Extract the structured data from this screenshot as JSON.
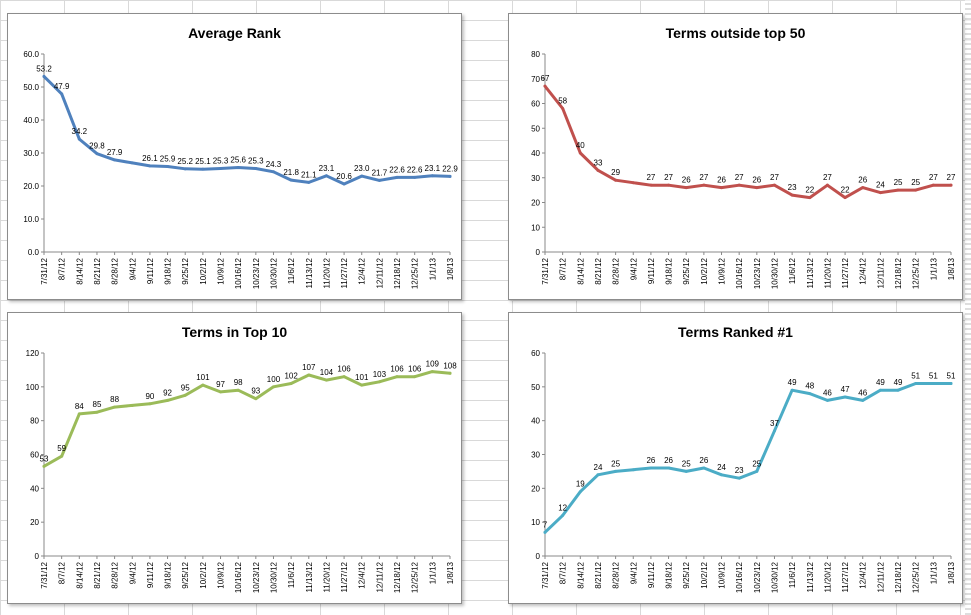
{
  "chart_data": [
    {
      "type": "line",
      "title": "Average Rank",
      "color": "#4f81bd",
      "categories": [
        "7/31/12",
        "8/7/12",
        "8/14/12",
        "8/21/12",
        "8/28/12",
        "9/4/12",
        "9/11/12",
        "9/18/12",
        "9/25/12",
        "10/2/12",
        "10/9/12",
        "10/16/12",
        "10/23/12",
        "10/30/12",
        "11/6/12",
        "11/13/12",
        "11/20/12",
        "11/27/12",
        "12/4/12",
        "12/11/12",
        "12/18/12",
        "12/25/12",
        "1/1/13",
        "1/8/13"
      ],
      "values": [
        53.2,
        47.9,
        34.2,
        29.8,
        27.9,
        27.0,
        26.1,
        25.9,
        25.2,
        25.1,
        25.3,
        25.6,
        25.3,
        24.3,
        21.8,
        21.1,
        23.1,
        20.6,
        23.0,
        21.7,
        22.6,
        22.6,
        23.1,
        22.9
      ],
      "labels": [
        "53.2",
        "47.9",
        "34.2",
        "29.8",
        "27.9",
        "",
        "26.1",
        "25.9",
        "25.2",
        "25.1",
        "25.3",
        "25.6",
        "25.3",
        "24.3",
        "21.8",
        "21.1",
        "23.1",
        "20.6",
        "23.0",
        "21.7",
        "22.6",
        "22.6",
        "23.1",
        "22.9"
      ],
      "yticks": [
        "0.0",
        "10.0",
        "20.0",
        "30.0",
        "40.0",
        "50.0",
        "60.0"
      ],
      "ylim": [
        0,
        60
      ],
      "grid": false
    },
    {
      "type": "line",
      "title": "Terms outside top 50",
      "color": "#c0504d",
      "categories": [
        "7/31/12",
        "8/7/12",
        "8/14/12",
        "8/21/12",
        "8/28/12",
        "9/4/12",
        "9/11/12",
        "9/18/12",
        "9/25/12",
        "10/2/12",
        "10/9/12",
        "10/16/12",
        "10/23/12",
        "10/30/12",
        "11/6/12",
        "11/13/12",
        "11/20/12",
        "11/27/12",
        "12/4/12",
        "12/11/12",
        "12/18/12",
        "12/25/12",
        "1/1/13",
        "1/8/13"
      ],
      "values": [
        67,
        58,
        40,
        33,
        29,
        28,
        27,
        27,
        26,
        27,
        26,
        27,
        26,
        27,
        23,
        22,
        27,
        22,
        26,
        24,
        25,
        25,
        27,
        27
      ],
      "labels": [
        "67",
        "58",
        "40",
        "33",
        "29",
        "",
        "27",
        "27",
        "26",
        "27",
        "26",
        "27",
        "26",
        "27",
        "23",
        "22",
        "27",
        "22",
        "26",
        "24",
        "25",
        "25",
        "27",
        "27"
      ],
      "yticks": [
        "0",
        "10",
        "20",
        "30",
        "40",
        "50",
        "60",
        "70",
        "80"
      ],
      "ylim": [
        0,
        80
      ],
      "grid": false
    },
    {
      "type": "line",
      "title": "Terms in Top 10",
      "color": "#9bbb59",
      "categories": [
        "7/31/12",
        "8/7/12",
        "8/14/12",
        "8/21/12",
        "8/28/12",
        "9/4/12",
        "9/11/12",
        "9/18/12",
        "9/25/12",
        "10/2/12",
        "10/9/12",
        "10/16/12",
        "10/23/12",
        "10/30/12",
        "11/6/12",
        "11/13/12",
        "11/20/12",
        "11/27/12",
        "12/4/12",
        "12/11/12",
        "12/18/12",
        "12/25/12",
        "1/1/13",
        "1/8/13"
      ],
      "values": [
        53,
        59,
        84,
        85,
        88,
        89,
        90,
        92,
        95,
        101,
        97,
        98,
        93,
        100,
        102,
        107,
        104,
        106,
        101,
        103,
        106,
        106,
        109,
        108
      ],
      "labels": [
        "53",
        "59",
        "84",
        "85",
        "88",
        "",
        "90",
        "92",
        "95",
        "101",
        "97",
        "98",
        "93",
        "100",
        "102",
        "107",
        "104",
        "106",
        "101",
        "103",
        "106",
        "106",
        "109",
        "108"
      ],
      "yticks": [
        "0",
        "20",
        "40",
        "60",
        "80",
        "100",
        "120"
      ],
      "ylim": [
        0,
        120
      ],
      "grid": false
    },
    {
      "type": "line",
      "title": "Terms Ranked #1",
      "color": "#4bacc6",
      "categories": [
        "7/31/12",
        "8/7/12",
        "8/14/12",
        "8/21/12",
        "8/28/12",
        "9/4/12",
        "9/11/12",
        "9/18/12",
        "9/25/12",
        "10/2/12",
        "10/9/12",
        "10/16/12",
        "10/23/12",
        "10/30/12",
        "11/6/12",
        "11/13/12",
        "11/20/12",
        "11/27/12",
        "12/4/12",
        "12/11/12",
        "12/18/12",
        "12/25/12",
        "1/1/13",
        "1/8/13"
      ],
      "values": [
        7,
        12,
        19,
        24,
        25,
        25.5,
        26,
        26,
        25,
        26,
        24,
        23,
        25,
        37,
        49,
        48,
        46,
        47,
        46,
        49,
        49,
        51,
        51,
        51
      ],
      "labels": [
        "7",
        "12",
        "19",
        "24",
        "25",
        "",
        "26",
        "26",
        "25",
        "26",
        "24",
        "23",
        "25",
        "37",
        "49",
        "48",
        "46",
        "47",
        "46",
        "49",
        "49",
        "51",
        "51",
        "51"
      ],
      "yticks": [
        "0",
        "10",
        "20",
        "30",
        "40",
        "50",
        "60"
      ],
      "ylim": [
        0,
        60
      ],
      "grid": false
    }
  ]
}
